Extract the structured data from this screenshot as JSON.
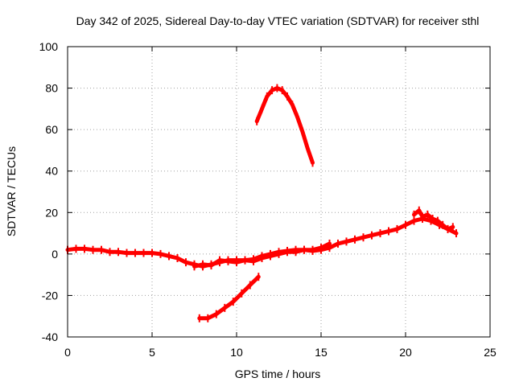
{
  "chart_data": {
    "type": "scatter",
    "title": "Day 342 of 2025, Sidereal Day-to-day VTEC variation (SDTVAR) for receiver sthl",
    "xlabel": "GPS time / hours",
    "ylabel": "SDTVAR / TECUs",
    "xlim": [
      0,
      25
    ],
    "ylim": [
      -40,
      100
    ],
    "xticks": [
      0,
      5,
      10,
      15,
      20,
      25
    ],
    "yticks": [
      -40,
      -20,
      0,
      20,
      40,
      60,
      80,
      100
    ],
    "grid": true,
    "color": "#ff0000",
    "series": [
      {
        "name": "main track",
        "x": [
          0,
          0.5,
          1,
          1.5,
          2,
          2.5,
          3,
          3.5,
          4,
          4.5,
          5,
          5.5,
          6,
          6.5,
          7,
          7.5,
          8,
          8.5,
          9,
          9.5,
          10,
          10.5,
          11,
          11.5,
          12,
          12.5,
          13,
          13.5,
          14,
          14.5,
          15,
          15.5,
          16,
          16.5,
          17,
          17.5,
          18,
          18.5,
          19,
          19.5,
          20,
          20.5,
          21,
          21.5,
          22,
          22.5,
          23
        ],
        "y": [
          2,
          2.5,
          2.5,
          2,
          2,
          1,
          1,
          0.5,
          0.5,
          0.5,
          0.5,
          0,
          -1,
          -2,
          -4,
          -5,
          -6,
          -5,
          -4,
          -3,
          -3,
          -3,
          -2.5,
          -1,
          0,
          1,
          1.5,
          2,
          2,
          1.5,
          2,
          3,
          5,
          6,
          7,
          8,
          9,
          10,
          11,
          12,
          14,
          16,
          17,
          16,
          14,
          12,
          10
        ]
      },
      {
        "name": "noisy band",
        "x": [
          7.5,
          8,
          8.5,
          9,
          9.5,
          10,
          10.5,
          11,
          11.5,
          12,
          12.5,
          13,
          13.5,
          14,
          14.5,
          15,
          15.5
        ],
        "y": [
          -6,
          -5,
          -5.5,
          -3,
          -3.5,
          -4,
          -3,
          -3.5,
          -2,
          -1,
          0,
          1,
          1,
          2,
          2,
          3,
          5
        ]
      },
      {
        "name": "upper arc",
        "x": [
          11.2,
          11.5,
          11.8,
          12.1,
          12.4,
          12.7,
          13,
          13.3,
          13.6,
          13.9,
          14.2,
          14.5
        ],
        "y": [
          64,
          70,
          76,
          79,
          80,
          79,
          76,
          72,
          66,
          59,
          51,
          44
        ]
      },
      {
        "name": "lower segment",
        "x": [
          7.8,
          8.3,
          8.8,
          9.3,
          9.8,
          10.3,
          10.8,
          11.3
        ],
        "y": [
          -31,
          -31,
          -29,
          -26,
          -23,
          -19,
          -15,
          -11
        ]
      },
      {
        "name": "late cluster",
        "x": [
          20.5,
          20.8,
          21,
          21.3,
          21.6,
          21.9,
          22.2,
          22.5,
          22.8
        ],
        "y": [
          19,
          21,
          18,
          19,
          17,
          16,
          14,
          12,
          13
        ]
      }
    ]
  }
}
